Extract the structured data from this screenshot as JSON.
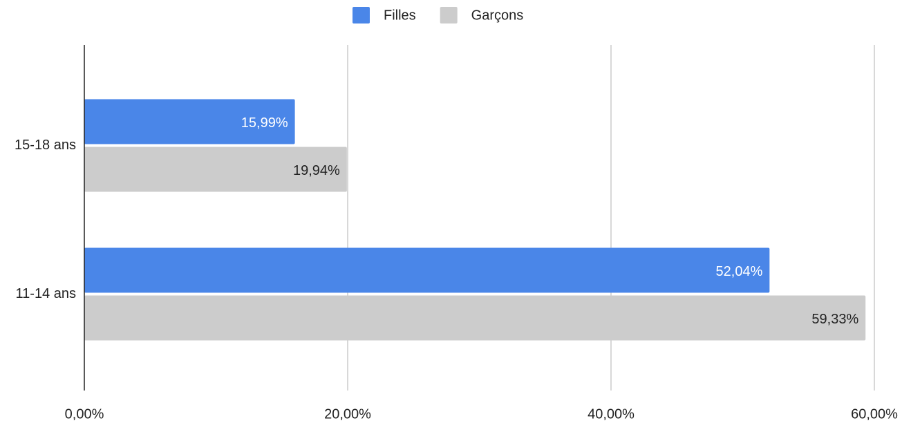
{
  "chart_data": {
    "type": "bar",
    "orientation": "horizontal",
    "categories": [
      "15-18 ans",
      "11-14 ans"
    ],
    "series": [
      {
        "name": "Filles",
        "color": "#4a86e8",
        "values": [
          15.99,
          52.04
        ],
        "value_labels": [
          "15,99%",
          "52,04%"
        ]
      },
      {
        "name": "Garçons",
        "color": "#cccccc",
        "values": [
          19.94,
          59.33
        ],
        "value_labels": [
          "19,94%",
          "59,33%"
        ]
      }
    ],
    "xlim": [
      0,
      60
    ],
    "xticks": [
      {
        "value": 0,
        "label": "0,00%"
      },
      {
        "value": 20,
        "label": "20,00%"
      },
      {
        "value": 40,
        "label": "40,00%"
      },
      {
        "value": 60,
        "label": "60,00%"
      }
    ],
    "grid": true,
    "legend": "top"
  }
}
